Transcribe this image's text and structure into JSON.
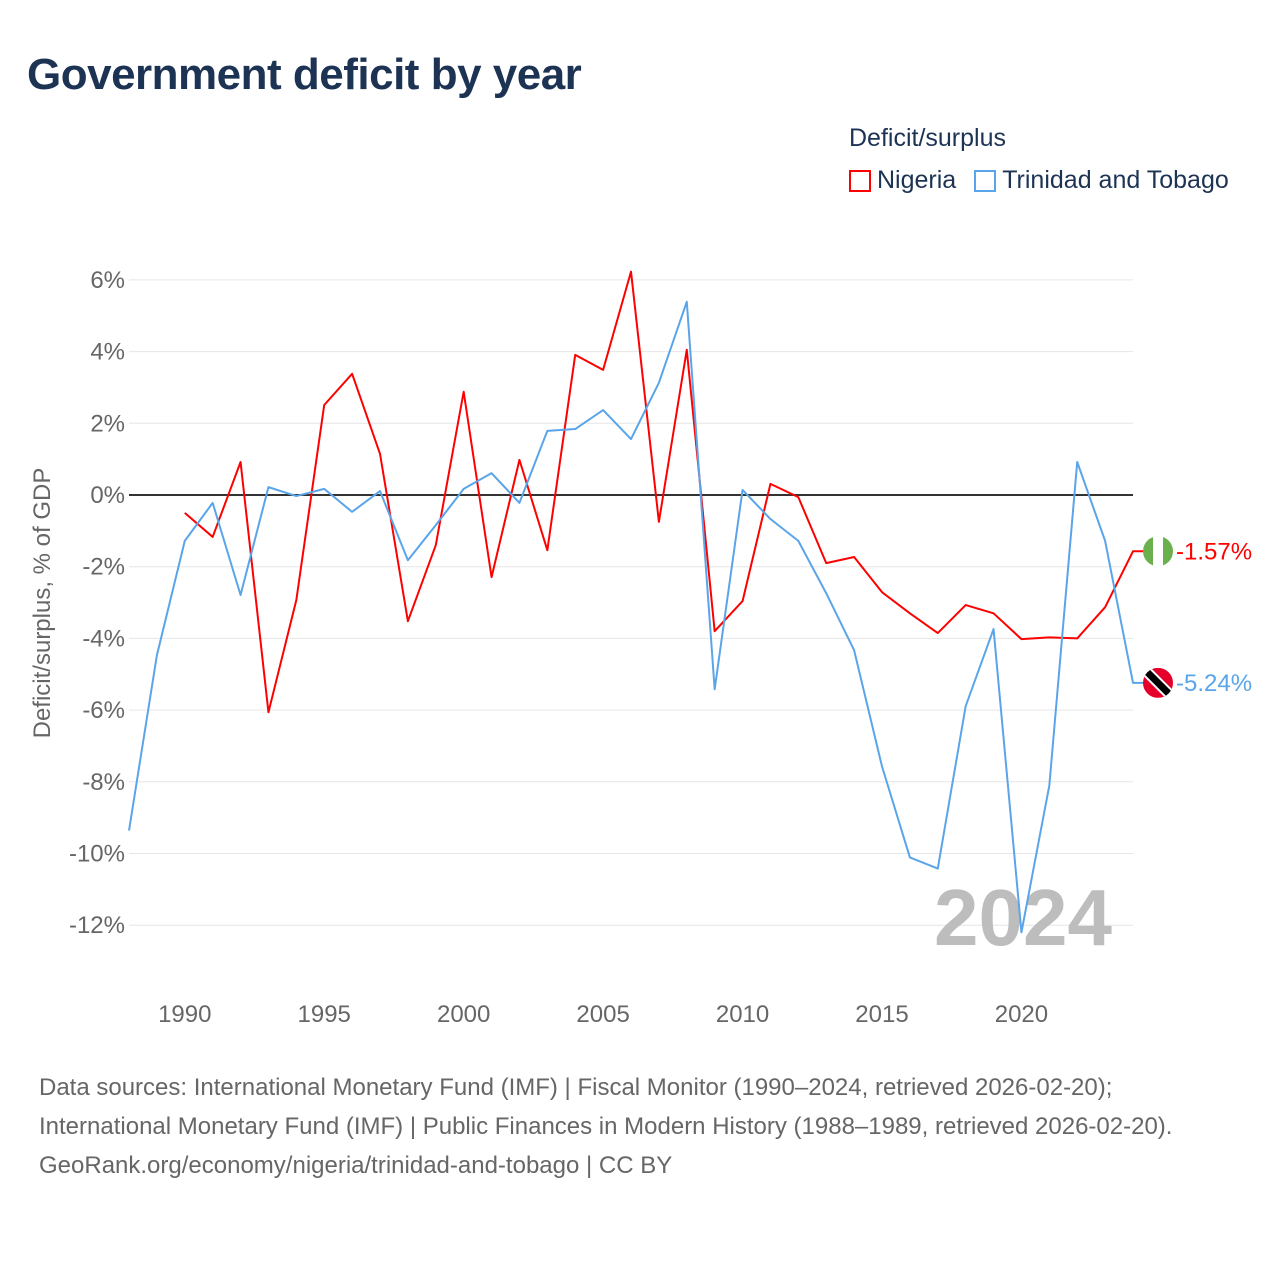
{
  "title": "Government deficit by year",
  "legend": {
    "title": "Deficit/surplus",
    "items": [
      {
        "label": "Nigeria",
        "color": "#ff0000"
      },
      {
        "label": "Trinidad and Tobago",
        "color": "#5aa5ea"
      }
    ]
  },
  "footer": {
    "sources": "Data sources: International Monetary Fund (IMF) | Fiscal Monitor (1990–2024, retrieved 2026-02-20); International Monetary Fund (IMF) | Public Finances in Modern History (1988–1989, retrieved 2026-02-20).",
    "credit": "GeoRank.org/economy/nigeria/trinidad-and-tobago | CC BY"
  },
  "chart_data": {
    "type": "line",
    "title": "Government deficit by year",
    "xlabel": "",
    "ylabel": "Deficit/surplus, % of GDP",
    "xlim": [
      1988,
      2024
    ],
    "ylim": [
      -13,
      6.5
    ],
    "x_ticks": [
      1990,
      1995,
      2000,
      2005,
      2010,
      2015,
      2020
    ],
    "y_ticks": [
      6,
      4,
      2,
      0,
      -2,
      -4,
      -6,
      -8,
      -10,
      -12
    ],
    "y_tick_labels": [
      "6%",
      "4%",
      "2%",
      "0%",
      "-2%",
      "-4%",
      "-6%",
      "-8%",
      "-10%",
      "-12%"
    ],
    "grid": true,
    "legend_placement": "top-right",
    "watermark": "2024",
    "series": [
      {
        "name": "Nigeria",
        "color": "#ff0000",
        "end_label": "-1.57%",
        "x": [
          1990,
          1991,
          1992,
          1993,
          1994,
          1995,
          1996,
          1997,
          1998,
          1999,
          2000,
          2001,
          2002,
          2003,
          2004,
          2005,
          2006,
          2007,
          2008,
          2009,
          2010,
          2011,
          2012,
          2013,
          2014,
          2015,
          2016,
          2017,
          2018,
          2019,
          2020,
          2021,
          2022,
          2023,
          2024
        ],
        "values": [
          -0.5,
          -1.17,
          0.92,
          -6.06,
          -2.93,
          2.51,
          3.38,
          1.15,
          -3.52,
          -1.4,
          2.88,
          -2.29,
          0.98,
          -1.54,
          3.91,
          3.49,
          6.23,
          -0.75,
          4.05,
          -3.8,
          -2.96,
          0.31,
          -0.06,
          -1.9,
          -1.73,
          -2.71,
          -3.3,
          -3.85,
          -3.07,
          -3.3,
          -4.02,
          -3.97,
          -4.0,
          -3.13,
          -1.57
        ]
      },
      {
        "name": "Trinidad and Tobago",
        "color": "#5aa5ea",
        "end_label": "-5.24%",
        "x": [
          1988,
          1989,
          1990,
          1991,
          1992,
          1993,
          1994,
          1995,
          1996,
          1997,
          1998,
          1999,
          2000,
          2001,
          2002,
          2003,
          2004,
          2005,
          2006,
          2007,
          2008,
          2009,
          2010,
          2011,
          2012,
          2013,
          2014,
          2015,
          2016,
          2017,
          2018,
          2019,
          2020,
          2021,
          2022,
          2023,
          2024
        ],
        "values": [
          -9.36,
          -4.47,
          -1.28,
          -0.22,
          -2.79,
          0.22,
          -0.03,
          0.17,
          -0.47,
          0.11,
          -1.82,
          -0.84,
          0.17,
          0.61,
          -0.22,
          1.79,
          1.84,
          2.37,
          1.56,
          3.13,
          5.39,
          -5.42,
          0.14,
          -0.67,
          -1.28,
          -2.74,
          -4.33,
          -7.57,
          -10.11,
          -10.42,
          -5.89,
          -3.74,
          -12.2,
          -8.1,
          0.92,
          -1.28,
          -5.24
        ]
      }
    ]
  }
}
